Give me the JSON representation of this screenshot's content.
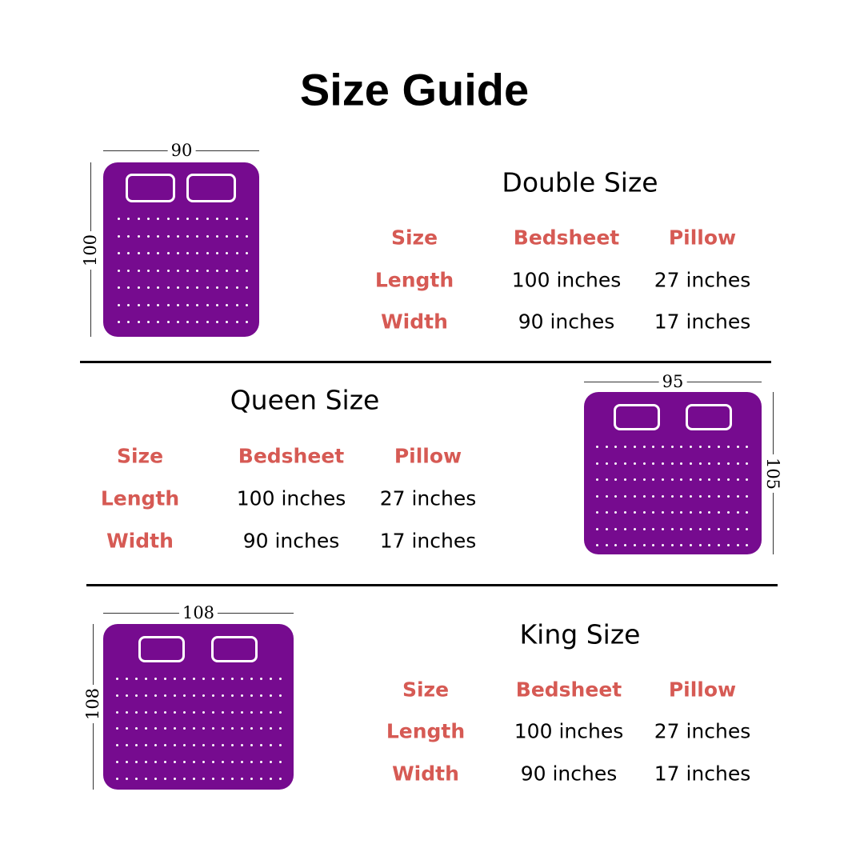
{
  "title": "Size Guide",
  "colors": {
    "bed": "#760b8f",
    "header": "#d65a54"
  },
  "sections": [
    {
      "title": "Double Size",
      "bed_width": "90",
      "bed_length": "100",
      "headers": [
        "Size",
        "Bedsheet",
        "Pillow"
      ],
      "rows": [
        [
          "Length",
          "100 inches",
          "27 inches"
        ],
        [
          "Width",
          "90 inches",
          "17 inches"
        ]
      ]
    },
    {
      "title": "Queen Size",
      "bed_width": "95",
      "bed_length": "105",
      "headers": [
        "Size",
        "Bedsheet",
        "Pillow"
      ],
      "rows": [
        [
          "Length",
          "100 inches",
          "27 inches"
        ],
        [
          "Width",
          "90 inches",
          "17 inches"
        ]
      ]
    },
    {
      "title": "King Size",
      "bed_width": "108",
      "bed_length": "108",
      "headers": [
        "Size",
        "Bedsheet",
        "Pillow"
      ],
      "rows": [
        [
          "Length",
          "100 inches",
          "27 inches"
        ],
        [
          "Width",
          "90 inches",
          "17 inches"
        ]
      ]
    }
  ]
}
